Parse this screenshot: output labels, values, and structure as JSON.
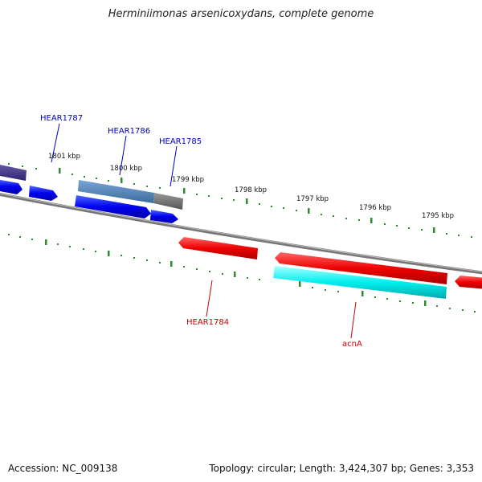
{
  "title": "Herminiimonas arsenicoxydans, complete genome",
  "footer": {
    "accession": "Accession: NC_009138",
    "stats": "Topology: circular; Length: 3,424,307 bp; Genes: 3,353"
  },
  "ticks": {
    "labels": [
      "1801 kbp",
      "1800 kbp",
      "1799 kbp",
      "1798 kbp",
      "1797 kbp",
      "1796 kbp",
      "1795 kbp"
    ]
  },
  "gene_labels": {
    "hear1787": "HEAR1787",
    "hear1786": "HEAR1786",
    "hear1785": "HEAR1785",
    "hear1784": "HEAR1784",
    "acna": "acnA"
  },
  "colors": {
    "forward_strand": "#0000ff",
    "reverse_strand": "#ff0000",
    "highlight": "#00ffff",
    "tick": "#2e8b2e",
    "label_blue": "#0000cc",
    "label_red": "#cc0000"
  }
}
